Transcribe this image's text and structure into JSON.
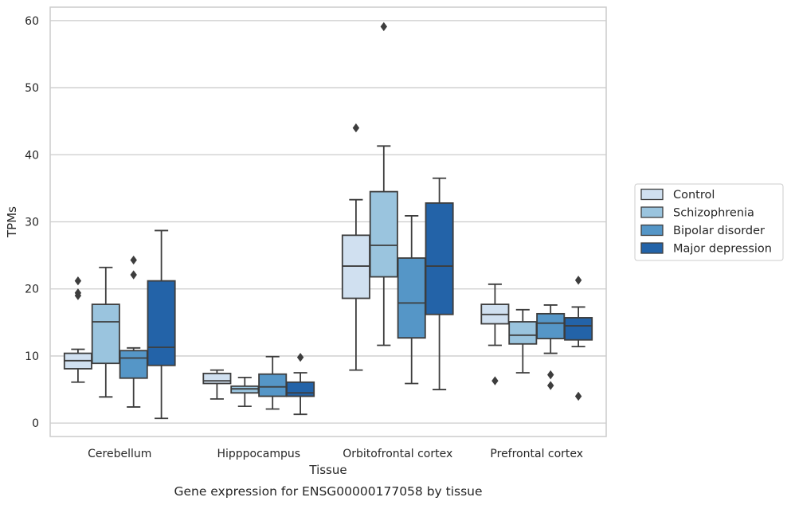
{
  "chart_data": {
    "type": "box",
    "caption": "Gene expression for ENSG00000177058 by tissue",
    "xlabel": "Tissue",
    "ylabel": "TPMs",
    "ylim": [
      -2,
      62
    ],
    "yticks": [
      0,
      10,
      20,
      30,
      40,
      50,
      60
    ],
    "grid": true,
    "legend_position": "right",
    "categories": [
      "Cerebellum",
      "Hipppocampus",
      "Orbitofrontal cortex",
      "Prefrontal cortex"
    ],
    "series": [
      {
        "name": "Control",
        "color": "#d0e0f0",
        "boxes": [
          {
            "whislo": 6.1,
            "q1": 8.1,
            "med": 9.3,
            "q3": 10.4,
            "whishi": 11.0,
            "fliers": [
              19.0,
              19.4,
              21.2
            ]
          },
          {
            "whislo": 3.6,
            "q1": 5.9,
            "med": 6.3,
            "q3": 7.4,
            "whishi": 7.9,
            "fliers": []
          },
          {
            "whislo": 7.9,
            "q1": 18.6,
            "med": 23.4,
            "q3": 28.0,
            "whishi": 33.3,
            "fliers": [
              44.0
            ]
          },
          {
            "whislo": 11.6,
            "q1": 14.8,
            "med": 16.2,
            "q3": 17.7,
            "whishi": 20.7,
            "fliers": [
              6.3
            ]
          }
        ]
      },
      {
        "name": "Schizophrenia",
        "color": "#9ac4de",
        "boxes": [
          {
            "whislo": 3.9,
            "q1": 8.9,
            "med": 15.1,
            "q3": 17.7,
            "whishi": 23.2,
            "fliers": []
          },
          {
            "whislo": 2.5,
            "q1": 4.5,
            "med": 5.1,
            "q3": 5.5,
            "whishi": 6.8,
            "fliers": []
          },
          {
            "whislo": 11.6,
            "q1": 21.8,
            "med": 26.5,
            "q3": 34.5,
            "whishi": 41.3,
            "fliers": [
              59.1
            ]
          },
          {
            "whislo": 7.5,
            "q1": 11.8,
            "med": 13.1,
            "q3": 15.1,
            "whishi": 16.9,
            "fliers": []
          }
        ]
      },
      {
        "name": "Bipolar disorder",
        "color": "#5596c7",
        "boxes": [
          {
            "whislo": 2.4,
            "q1": 6.7,
            "med": 9.7,
            "q3": 10.8,
            "whishi": 11.2,
            "fliers": [
              22.1,
              24.3
            ]
          },
          {
            "whislo": 2.1,
            "q1": 4.0,
            "med": 5.4,
            "q3": 7.3,
            "whishi": 9.9,
            "fliers": []
          },
          {
            "whislo": 5.9,
            "q1": 12.7,
            "med": 17.9,
            "q3": 24.6,
            "whishi": 30.9,
            "fliers": []
          },
          {
            "whislo": 10.4,
            "q1": 12.6,
            "med": 14.9,
            "q3": 16.3,
            "whishi": 17.6,
            "fliers": [
              7.2,
              5.6
            ]
          }
        ]
      },
      {
        "name": "Major depression",
        "color": "#2363a8",
        "boxes": [
          {
            "whislo": 0.7,
            "q1": 8.6,
            "med": 11.3,
            "q3": 21.2,
            "whishi": 28.7,
            "fliers": []
          },
          {
            "whislo": 1.3,
            "q1": 4.0,
            "med": 4.5,
            "q3": 6.1,
            "whishi": 7.5,
            "fliers": [
              9.8
            ]
          },
          {
            "whislo": 5.0,
            "q1": 16.2,
            "med": 23.4,
            "q3": 32.8,
            "whishi": 36.5,
            "fliers": []
          },
          {
            "whislo": 11.4,
            "q1": 12.4,
            "med": 14.5,
            "q3": 15.7,
            "whishi": 17.3,
            "fliers": [
              21.3,
              4.0
            ]
          }
        ]
      }
    ]
  }
}
